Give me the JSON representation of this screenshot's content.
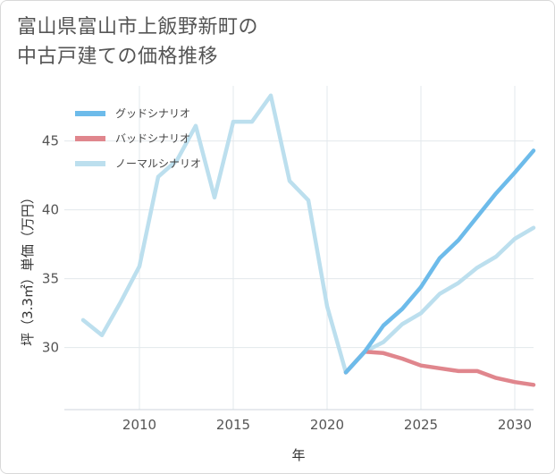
{
  "title_lines": [
    "富山県富山市上飯野新町の",
    "中古戸建ての価格推移"
  ],
  "chart_data": {
    "type": "line",
    "title": "富山県富山市上飯野新町の中古戸建ての価格推移",
    "xlabel": "年",
    "ylabel": "坪（3.3㎡）単価（万円）",
    "xlim": [
      2006,
      2031
    ],
    "ylim": [
      25.5,
      49
    ],
    "xticks": [
      2010,
      2015,
      2020,
      2025,
      2030
    ],
    "yticks": [
      30,
      35,
      40,
      45
    ],
    "grid": true,
    "legend_position": "top-left",
    "series": [
      {
        "name": "グッドシナリオ",
        "color": "#6dbbea",
        "x": [
          2021,
          2022,
          2023,
          2024,
          2025,
          2026,
          2027,
          2028,
          2029,
          2030,
          2031
        ],
        "values": [
          28.2,
          29.7,
          31.6,
          32.8,
          34.4,
          36.5,
          37.8,
          39.5,
          41.2,
          42.7,
          44.3
        ]
      },
      {
        "name": "バッドシナリオ",
        "color": "#e0868d",
        "x": [
          2021,
          2022,
          2023,
          2024,
          2025,
          2026,
          2027,
          2028,
          2029,
          2030,
          2031
        ],
        "values": [
          28.2,
          29.7,
          29.6,
          29.2,
          28.7,
          28.5,
          28.3,
          28.3,
          27.8,
          27.5,
          27.3
        ]
      },
      {
        "name": "ノーマルシナリオ",
        "color": "#bcdfee",
        "x": [
          2007,
          2008,
          2009,
          2010,
          2011,
          2012,
          2013,
          2014,
          2015,
          2016,
          2017,
          2018,
          2019,
          2020,
          2021,
          2022,
          2023,
          2024,
          2025,
          2026,
          2027,
          2028,
          2029,
          2030,
          2031
        ],
        "values": [
          32.0,
          30.9,
          33.3,
          35.9,
          42.4,
          43.6,
          46.1,
          40.9,
          46.4,
          46.4,
          48.3,
          42.1,
          40.7,
          33.0,
          28.2,
          29.7,
          30.4,
          31.7,
          32.5,
          33.9,
          34.7,
          35.8,
          36.6,
          37.9,
          38.7
        ]
      }
    ]
  }
}
